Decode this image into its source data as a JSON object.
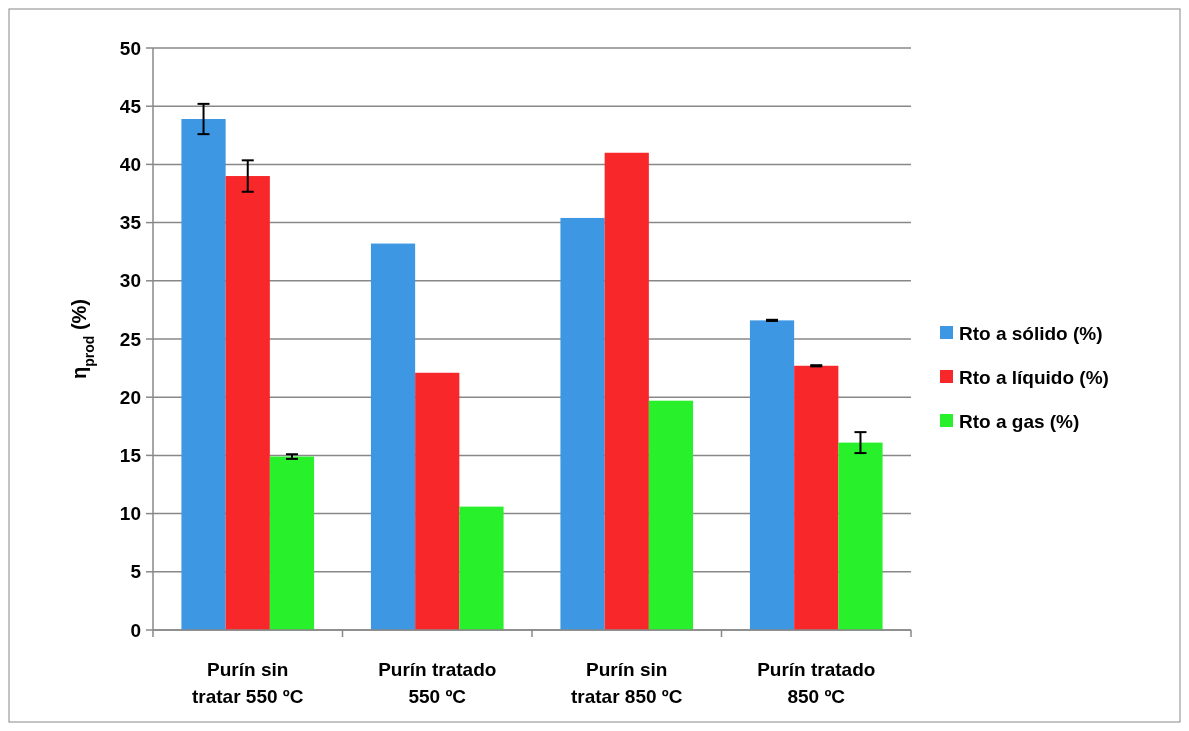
{
  "chart_data": {
    "type": "bar",
    "ylabel": "η$_{prod}$ (%)",
    "categories": [
      "Purín sin tratar 550 ºC",
      "Purín tratado 550 ºC",
      "Purín sin tratar 850 ºC",
      "Purín tratado 850 ºC"
    ],
    "series": [
      {
        "name": "Rto a sólido (%)",
        "color": "#3d97e3",
        "values": [
          43.9,
          33.2,
          35.4,
          26.6
        ],
        "errors": [
          1.3,
          null,
          null,
          0.05
        ]
      },
      {
        "name": "Rto a líquido (%)",
        "color": "#f8282a",
        "values": [
          39.0,
          22.1,
          41.0,
          22.7
        ],
        "errors": [
          1.35,
          null,
          null,
          0.05
        ]
      },
      {
        "name": "Rto a gas (%)",
        "color": "#28f02a",
        "values": [
          14.9,
          10.6,
          19.7,
          16.1
        ],
        "errors": [
          0.2,
          null,
          null,
          0.9
        ]
      }
    ],
    "ylim": [
      0,
      50
    ],
    "yticks": [
      0,
      5,
      10,
      15,
      20,
      25,
      30,
      35,
      40,
      45,
      50
    ],
    "grid": "y",
    "legend": "right"
  }
}
